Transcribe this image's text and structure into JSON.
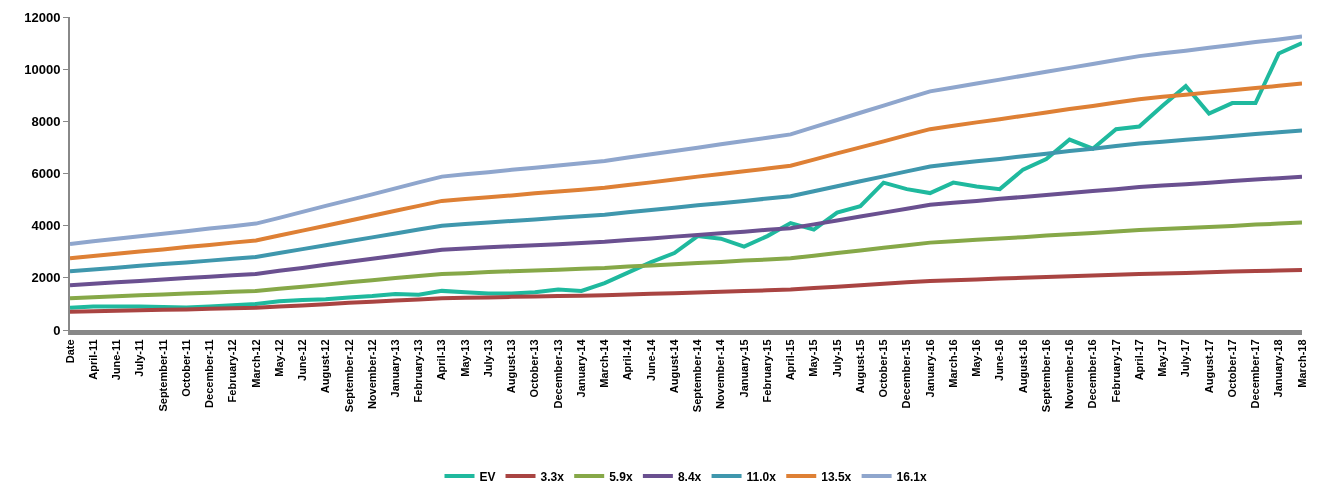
{
  "chart_data": {
    "type": "line",
    "categories": [
      "Date",
      "April-11",
      "June-11",
      "July-11",
      "September-11",
      "October-11",
      "December-11",
      "February-12",
      "March-12",
      "May-12",
      "June-12",
      "August-12",
      "September-12",
      "November-12",
      "January-13",
      "February-13",
      "April-13",
      "May-13",
      "July-13",
      "August-13",
      "October-13",
      "December-13",
      "January-14",
      "March-14",
      "April-14",
      "June-14",
      "August-14",
      "September-14",
      "November-14",
      "January-15",
      "February-15",
      "April-15",
      "May-15",
      "July-15",
      "August-15",
      "October-15",
      "December-15",
      "January-16",
      "March-16",
      "May-16",
      "June-16",
      "August-16",
      "September-16",
      "November-16",
      "December-16",
      "February-17",
      "April-17",
      "May-17",
      "July-17",
      "August-17",
      "October-17",
      "December-17",
      "January-18",
      "March-18"
    ],
    "series": [
      {
        "name": "EV",
        "color": "#1fb99e",
        "values": [
          850,
          900,
          900,
          900,
          880,
          860,
          900,
          950,
          1000,
          1100,
          1150,
          1180,
          1250,
          1300,
          1380,
          1350,
          1500,
          1450,
          1400,
          1400,
          1450,
          1550,
          1500,
          1800,
          2200,
          2600,
          2950,
          3600,
          3500,
          3200,
          3600,
          4100,
          3850,
          4500,
          4750,
          5650,
          5400,
          5250,
          5650,
          5500,
          5400,
          6150,
          6550,
          7300,
          6950,
          7700,
          7800,
          8600,
          9350,
          8300,
          8700,
          8700,
          10600,
          11000
        ]
      },
      {
        "name": "3.3x",
        "color": "#a94442",
        "values": [
          700,
          720,
          740,
          760,
          780,
          790,
          810,
          830,
          850,
          900,
          940,
          990,
          1040,
          1080,
          1130,
          1170,
          1220,
          1240,
          1250,
          1270,
          1280,
          1300,
          1310,
          1330,
          1360,
          1390,
          1410,
          1440,
          1470,
          1500,
          1520,
          1550,
          1610,
          1660,
          1720,
          1770,
          1830,
          1880,
          1910,
          1940,
          1970,
          2000,
          2030,
          2060,
          2090,
          2120,
          2150,
          2170,
          2190,
          2210,
          2240,
          2260,
          2280,
          2300
        ]
      },
      {
        "name": "5.9x",
        "color": "#86a848",
        "values": [
          1220,
          1260,
          1290,
          1330,
          1360,
          1400,
          1430,
          1470,
          1500,
          1580,
          1660,
          1740,
          1830,
          1910,
          1990,
          2070,
          2150,
          2180,
          2220,
          2250,
          2280,
          2310,
          2350,
          2380,
          2430,
          2470,
          2520,
          2570,
          2610,
          2660,
          2700,
          2750,
          2850,
          2950,
          3050,
          3150,
          3250,
          3350,
          3400,
          3460,
          3510,
          3560,
          3620,
          3670,
          3720,
          3780,
          3830,
          3870,
          3910,
          3950,
          3990,
          4040,
          4080,
          4120
        ]
      },
      {
        "name": "8.4x",
        "color": "#6a5090",
        "values": [
          1720,
          1770,
          1830,
          1880,
          1940,
          1990,
          2040,
          2100,
          2150,
          2270,
          2380,
          2500,
          2620,
          2730,
          2850,
          2960,
          3080,
          3120,
          3170,
          3210,
          3250,
          3290,
          3340,
          3380,
          3450,
          3510,
          3580,
          3640,
          3710,
          3770,
          3840,
          3900,
          4050,
          4200,
          4350,
          4500,
          4650,
          4800,
          4880,
          4950,
          5030,
          5100,
          5180,
          5250,
          5330,
          5400,
          5480,
          5540,
          5590,
          5650,
          5710,
          5770,
          5820,
          5880
        ]
      },
      {
        "name": "11.0x",
        "color": "#3f97ad",
        "values": [
          2250,
          2320,
          2390,
          2460,
          2530,
          2590,
          2660,
          2730,
          2800,
          2950,
          3100,
          3250,
          3400,
          3550,
          3700,
          3850,
          4000,
          4060,
          4120,
          4180,
          4240,
          4300,
          4360,
          4420,
          4510,
          4600,
          4690,
          4780,
          4860,
          4950,
          5040,
          5130,
          5320,
          5510,
          5700,
          5890,
          6080,
          6270,
          6370,
          6470,
          6560,
          6660,
          6760,
          6860,
          6950,
          7050,
          7150,
          7220,
          7290,
          7360,
          7440,
          7510,
          7580,
          7650
        ]
      },
      {
        "name": "13.5x",
        "color": "#de8035",
        "values": [
          2750,
          2840,
          2920,
          3010,
          3090,
          3180,
          3260,
          3350,
          3430,
          3620,
          3810,
          4000,
          4190,
          4380,
          4570,
          4760,
          4950,
          5020,
          5090,
          5160,
          5240,
          5310,
          5380,
          5450,
          5560,
          5660,
          5770,
          5880,
          5980,
          6090,
          6190,
          6300,
          6530,
          6770,
          7000,
          7230,
          7470,
          7700,
          7830,
          7960,
          8080,
          8210,
          8340,
          8470,
          8590,
          8720,
          8850,
          8940,
          9020,
          9110,
          9190,
          9280,
          9360,
          9450
        ]
      },
      {
        "name": "16.1x",
        "color": "#8fa6cd",
        "values": [
          3300,
          3400,
          3500,
          3590,
          3690,
          3790,
          3890,
          3980,
          4080,
          4300,
          4530,
          4760,
          4980,
          5200,
          5430,
          5660,
          5880,
          5970,
          6050,
          6140,
          6220,
          6310,
          6390,
          6480,
          6610,
          6740,
          6860,
          6990,
          7120,
          7250,
          7370,
          7500,
          7780,
          8050,
          8330,
          8600,
          8880,
          9150,
          9300,
          9450,
          9600,
          9750,
          9900,
          10050,
          10200,
          10350,
          10500,
          10610,
          10710,
          10820,
          10930,
          11040,
          11140,
          11250
        ]
      }
    ],
    "ylim": [
      0,
      12000
    ],
    "yticks": [
      0,
      2000,
      4000,
      6000,
      8000,
      10000,
      12000
    ],
    "legend": "bottom",
    "marker": "none",
    "line_style": "solid"
  }
}
